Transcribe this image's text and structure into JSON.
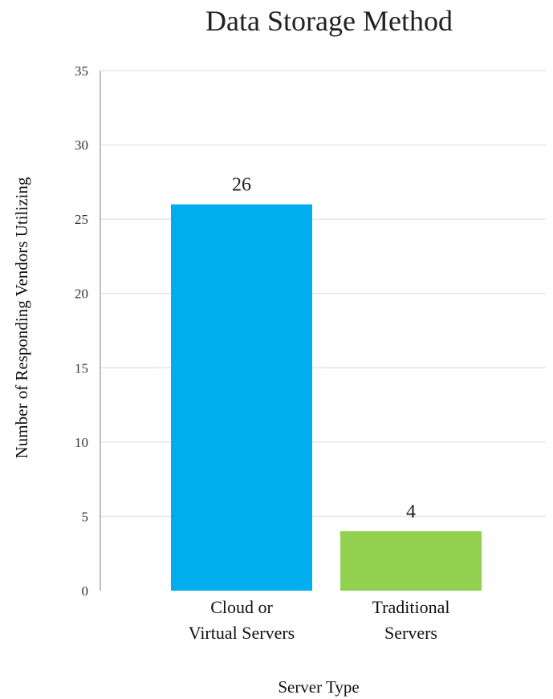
{
  "chart_data": {
    "type": "bar",
    "title": "Data Storage Method",
    "xlabel": "Server Type",
    "ylabel": "Number of Responding Vendors Utilizing",
    "categories": [
      [
        "Cloud or",
        "Virtual Servers"
      ],
      [
        "Traditional",
        "Servers"
      ]
    ],
    "values": [
      26,
      4
    ],
    "data_labels": [
      "26",
      "4"
    ],
    "colors": [
      "#00aeef",
      "#92d050"
    ],
    "ylim": [
      0,
      35
    ],
    "yticks": [
      0,
      5,
      10,
      15,
      20,
      25,
      30,
      35
    ],
    "grid": true,
    "legend": "none"
  }
}
